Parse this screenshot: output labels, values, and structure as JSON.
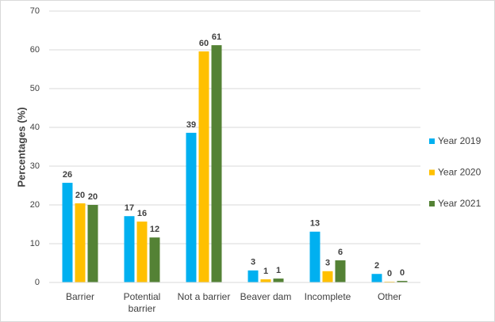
{
  "chart_data": {
    "type": "bar",
    "y_label": "Percentages (%)",
    "categories": [
      "Barrier",
      "Potential barrier",
      "Not a barrier",
      "Beaver dam",
      "Incomplete",
      "Other"
    ],
    "series": [
      {
        "name": "Year 2019",
        "color": "#00b0f0",
        "values": [
          25.7,
          17.1,
          38.6,
          3.1,
          13.1,
          2.2
        ],
        "value_labels": [
          "26",
          "17",
          "39",
          "3",
          "13",
          "2"
        ]
      },
      {
        "name": "Year 2020",
        "color": "#ffc000",
        "values": [
          20.4,
          15.7,
          59.6,
          0.8,
          2.9,
          0.2
        ],
        "value_labels": [
          "20",
          "16",
          "60",
          "1",
          "3",
          "0"
        ]
      },
      {
        "name": "Year 2021",
        "color": "#548235",
        "values": [
          20.0,
          11.6,
          61.2,
          1.0,
          5.7,
          0.4
        ],
        "value_labels": [
          "20",
          "12",
          "61",
          "1",
          "6",
          "0"
        ]
      }
    ],
    "ylim": [
      0,
      70
    ],
    "yticks": [
      0,
      10,
      20,
      30,
      40,
      50,
      60,
      70
    ],
    "grid": true,
    "legend": "right"
  }
}
